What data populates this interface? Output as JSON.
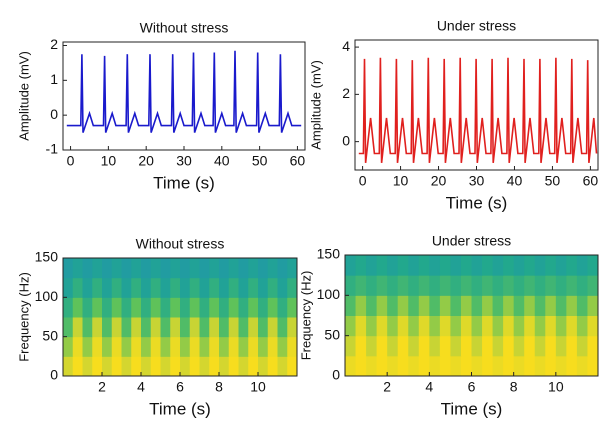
{
  "chart_data": [
    {
      "type": "line",
      "title": "Without stress",
      "x_label": "Time (s)",
      "y_label": "Amplitude (mV)",
      "xlim": [
        -2,
        62
      ],
      "ylim": [
        -1,
        2.1
      ],
      "xticks": [
        0,
        10,
        20,
        30,
        40,
        50,
        60
      ],
      "yticks": [
        -1,
        0,
        1,
        2
      ],
      "series": [
        {
          "color": "#1a1acc",
          "x": [
            -1,
            2.7,
            3,
            3.3,
            5,
            6,
            8.7,
            9,
            9.3,
            11,
            12,
            14.7,
            15,
            15.3,
            17,
            18,
            20.7,
            21,
            21.3,
            23,
            24,
            26.7,
            27,
            27.3,
            29,
            30,
            32.2,
            32.5,
            32.8,
            34.5,
            35.5,
            37.7,
            38,
            38.3,
            40,
            41,
            43.2,
            43.5,
            43.8,
            45.5,
            46.5,
            49.2,
            49.5,
            49.8,
            51.5,
            52.5,
            55.2,
            55.5,
            55.8,
            57.5,
            58.5,
            61
          ],
          "values": [
            -0.3,
            -0.3,
            1.75,
            -0.5,
            0.05,
            -0.3,
            -0.3,
            1.7,
            -0.5,
            0.05,
            -0.3,
            -0.3,
            1.75,
            -0.5,
            0.05,
            -0.3,
            -0.3,
            1.75,
            -0.5,
            0.05,
            -0.3,
            -0.3,
            1.75,
            -0.5,
            0.05,
            -0.3,
            -0.3,
            1.8,
            -0.5,
            0.05,
            -0.3,
            -0.3,
            1.8,
            -0.5,
            0.05,
            -0.3,
            -0.3,
            1.85,
            -0.5,
            0.05,
            -0.3,
            -0.3,
            1.8,
            -0.5,
            0.05,
            -0.3,
            -0.3,
            1.75,
            -0.5,
            0.05,
            -0.3,
            -0.3
          ]
        }
      ]
    },
    {
      "type": "line",
      "title": "Under stress",
      "x_label": "Time (s)",
      "y_label": "Amplitude (mV)",
      "xlim": [
        -2,
        62
      ],
      "ylim": [
        -1.2,
        4.3
      ],
      "xticks": [
        0,
        10,
        20,
        30,
        40,
        50,
        60
      ],
      "yticks": [
        0,
        2,
        4
      ],
      "series": [
        {
          "color": "#e0201e",
          "x": [
            -1,
            0.2,
            0.5,
            0.8,
            2.1,
            3.1,
            4.4,
            4.7,
            5,
            6.3,
            7.3,
            8.6,
            8.9,
            9.2,
            10.5,
            11.5,
            12.8,
            13.1,
            13.4,
            14.7,
            15.7,
            17,
            17.3,
            17.6,
            18.9,
            19.9,
            21.2,
            21.5,
            21.8,
            23.1,
            24.1,
            25.4,
            25.7,
            26,
            27.3,
            28.3,
            29.6,
            29.9,
            30.2,
            31.5,
            32.5,
            33.8,
            34.1,
            34.4,
            35.7,
            36.7,
            38,
            38.3,
            38.6,
            39.9,
            40.9,
            42.2,
            42.5,
            42.8,
            44.1,
            45.1,
            46.4,
            46.7,
            47,
            48.3,
            49.3,
            50.6,
            50.9,
            51.2,
            52.5,
            53.5,
            54.8,
            55.1,
            55.4,
            56.7,
            57.7,
            59,
            59.3,
            59.6,
            60.9,
            61.6
          ],
          "values": [
            -0.5,
            -0.5,
            3.5,
            -0.9,
            1.0,
            -0.5,
            -0.5,
            3.55,
            -0.9,
            1.0,
            -0.5,
            -0.5,
            3.5,
            -0.9,
            1.0,
            -0.5,
            -0.5,
            3.45,
            -0.9,
            1.0,
            -0.5,
            -0.5,
            3.55,
            -0.9,
            1.0,
            -0.5,
            -0.5,
            3.5,
            -0.9,
            1.0,
            -0.5,
            -0.5,
            3.55,
            -0.9,
            1.0,
            -0.5,
            -0.5,
            3.5,
            -0.9,
            1.0,
            -0.5,
            -0.5,
            3.5,
            -0.9,
            1.0,
            -0.5,
            -0.5,
            3.55,
            -0.9,
            1.0,
            -0.5,
            -0.5,
            3.5,
            -0.9,
            1.0,
            -0.5,
            -0.5,
            3.5,
            -0.9,
            1.0,
            -0.5,
            -0.5,
            3.55,
            -0.9,
            1.0,
            -0.5,
            -0.5,
            3.5,
            -0.9,
            1.0,
            -0.5,
            -0.5,
            3.45,
            -0.9,
            1.0,
            -0.5
          ]
        }
      ]
    },
    {
      "type": "heatmap",
      "title": "Without stress",
      "x_label": "Time (s)",
      "y_label": "Frequency (Hz)",
      "xlim": [
        0,
        12
      ],
      "ylim": [
        0,
        150
      ],
      "xticks": [
        2,
        4,
        6,
        8,
        10
      ],
      "yticks": [
        0,
        50,
        100,
        150
      ],
      "zlim": [
        0.2,
        1
      ],
      "colormap": [
        "#1f8fb4",
        "#22a88d",
        "#5fc25a",
        "#c8d434",
        "#f7dd1e"
      ],
      "z": [
        [
          0.85,
          1,
          0.85,
          1,
          0.85,
          1,
          0.85,
          1,
          0.85,
          1,
          0.85,
          1,
          0.85,
          1,
          0.85,
          1,
          0.85,
          1,
          0.85,
          1,
          0.85,
          1,
          0.85,
          1
        ],
        [
          0.7,
          0.95,
          0.7,
          0.95,
          0.7,
          0.95,
          0.7,
          0.95,
          0.7,
          0.95,
          0.7,
          0.95,
          0.7,
          0.95,
          0.7,
          0.95,
          0.7,
          0.95,
          0.7,
          0.95,
          0.7,
          0.95,
          0.7,
          0.95
        ],
        [
          0.55,
          0.8,
          0.55,
          0.8,
          0.55,
          0.8,
          0.55,
          0.8,
          0.55,
          0.8,
          0.55,
          0.8,
          0.55,
          0.8,
          0.55,
          0.8,
          0.55,
          0.8,
          0.55,
          0.8,
          0.55,
          0.8,
          0.55,
          0.8
        ],
        [
          0.45,
          0.6,
          0.45,
          0.6,
          0.45,
          0.6,
          0.45,
          0.6,
          0.45,
          0.6,
          0.45,
          0.6,
          0.45,
          0.6,
          0.45,
          0.6,
          0.45,
          0.6,
          0.45,
          0.6,
          0.45,
          0.6,
          0.45,
          0.6
        ],
        [
          0.35,
          0.45,
          0.35,
          0.45,
          0.35,
          0.45,
          0.35,
          0.45,
          0.35,
          0.45,
          0.35,
          0.45,
          0.35,
          0.45,
          0.35,
          0.45,
          0.35,
          0.45,
          0.35,
          0.45,
          0.35,
          0.45,
          0.35,
          0.45
        ],
        [
          0.3,
          0.35,
          0.3,
          0.35,
          0.3,
          0.35,
          0.3,
          0.35,
          0.3,
          0.35,
          0.3,
          0.35,
          0.3,
          0.35,
          0.3,
          0.35,
          0.3,
          0.35,
          0.3,
          0.35,
          0.3,
          0.35,
          0.3,
          0.35
        ]
      ]
    },
    {
      "type": "heatmap",
      "title": "Under stress",
      "x_label": "Time (s)",
      "y_label": "Frequency (Hz)",
      "xlim": [
        0,
        12
      ],
      "ylim": [
        0,
        150
      ],
      "xticks": [
        2,
        4,
        6,
        8,
        10
      ],
      "yticks": [
        0,
        50,
        100,
        150
      ],
      "zlim": [
        0.2,
        1
      ],
      "colormap": [
        "#1f8fb4",
        "#22a88d",
        "#5fc25a",
        "#c8d434",
        "#f7dd1e"
      ],
      "z": [
        [
          0.95,
          1,
          0.95,
          1,
          0.95,
          1,
          0.95,
          1,
          0.95,
          1,
          0.95,
          1,
          0.95,
          1,
          0.95,
          1,
          0.95,
          1,
          0.95,
          1,
          0.95,
          1,
          0.95,
          1
        ],
        [
          0.8,
          1,
          0.8,
          1,
          0.8,
          1,
          0.8,
          1,
          0.8,
          1,
          0.8,
          1,
          0.8,
          1,
          0.8,
          1,
          0.8,
          1,
          0.8,
          1,
          0.8,
          1,
          0.8,
          1
        ],
        [
          0.7,
          0.9,
          0.7,
          0.9,
          0.7,
          0.9,
          0.7,
          0.9,
          0.7,
          0.9,
          0.7,
          0.9,
          0.7,
          0.9,
          0.7,
          0.9,
          0.7,
          0.9,
          0.7,
          0.9,
          0.7,
          0.9,
          0.7,
          0.9
        ],
        [
          0.55,
          0.7,
          0.55,
          0.7,
          0.55,
          0.7,
          0.55,
          0.7,
          0.55,
          0.7,
          0.55,
          0.7,
          0.55,
          0.7,
          0.55,
          0.7,
          0.55,
          0.7,
          0.55,
          0.7,
          0.55,
          0.7,
          0.55,
          0.7
        ],
        [
          0.45,
          0.5,
          0.45,
          0.5,
          0.45,
          0.5,
          0.45,
          0.5,
          0.45,
          0.5,
          0.45,
          0.5,
          0.45,
          0.5,
          0.45,
          0.5,
          0.45,
          0.5,
          0.45,
          0.5,
          0.45,
          0.5,
          0.45,
          0.5
        ],
        [
          0.35,
          0.4,
          0.35,
          0.4,
          0.35,
          0.4,
          0.35,
          0.4,
          0.35,
          0.4,
          0.35,
          0.4,
          0.35,
          0.4,
          0.35,
          0.4,
          0.35,
          0.4,
          0.35,
          0.4,
          0.35,
          0.4,
          0.35,
          0.4
        ]
      ]
    }
  ]
}
